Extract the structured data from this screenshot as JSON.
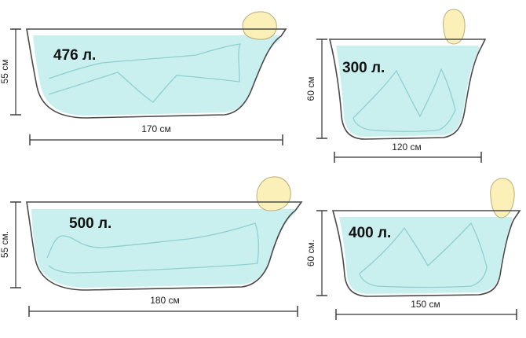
{
  "tubs": [
    {
      "id": "tub-1",
      "volume": "476 л.",
      "length": "170 см",
      "height": "55 см"
    },
    {
      "id": "tub-2",
      "volume": "500 л.",
      "length": "180 см",
      "height": "55 см."
    },
    {
      "id": "tub-3",
      "volume": "300 л.",
      "length": "120 см",
      "height": "60 см"
    },
    {
      "id": "tub-4",
      "volume": "400 л.",
      "length": "150 см",
      "height": "60 см."
    }
  ],
  "colors": {
    "water": "#c9f0ef",
    "head": "#fbf0b8",
    "outline": "#4a4a4a"
  }
}
